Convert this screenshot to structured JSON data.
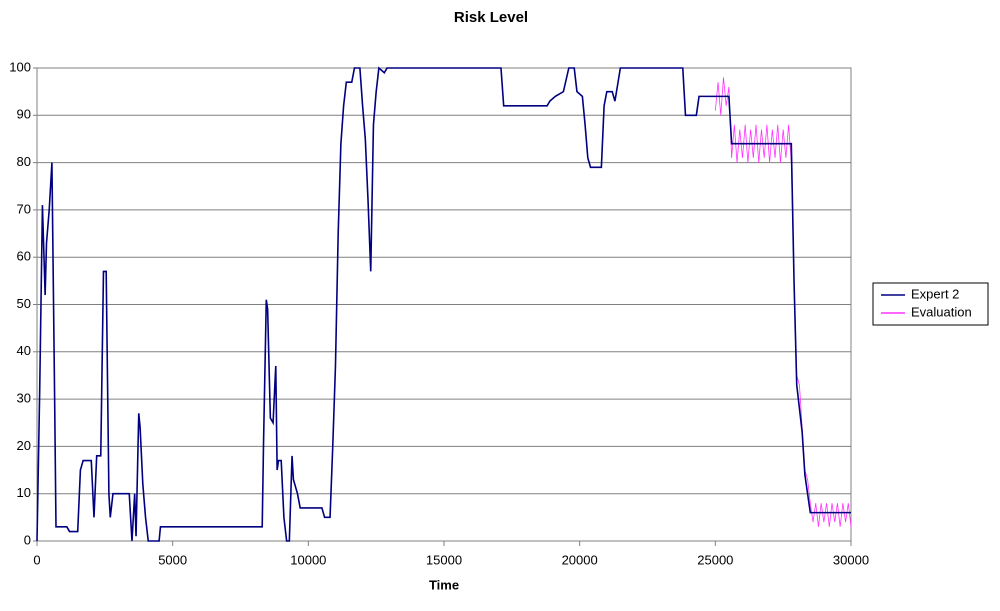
{
  "chart_data": {
    "type": "line",
    "title": "Risk Level",
    "x_label": "Time",
    "xlim": [
      0,
      30000
    ],
    "xticks": [
      0,
      5000,
      10000,
      15000,
      20000,
      25000,
      30000
    ],
    "ylim": [
      0,
      100
    ],
    "yticks": [
      0,
      10,
      20,
      30,
      40,
      50,
      60,
      70,
      80,
      90,
      100
    ],
    "grid": true,
    "legend": "right",
    "series": [
      {
        "name": "Expert 2",
        "color": "#000080",
        "x": [
          0,
          100,
          200,
          300,
          350,
          450,
          550,
          650,
          700,
          1100,
          1200,
          1500,
          1600,
          1700,
          2000,
          2100,
          2200,
          2350,
          2450,
          2550,
          2650,
          2700,
          2800,
          3400,
          3500,
          3600,
          3650,
          3750,
          3800,
          3900,
          4000,
          4100,
          4500,
          4550,
          8300,
          8350,
          8450,
          8500,
          8600,
          8700,
          8800,
          8850,
          8900,
          9000,
          9100,
          9200,
          9300,
          9400,
          9450,
          9600,
          9700,
          10500,
          10600,
          10800,
          10900,
          11000,
          11100,
          11200,
          11300,
          11400,
          11600,
          11700,
          11900,
          12000,
          12100,
          12200,
          12300,
          12400,
          12500,
          12600,
          12800,
          12900,
          17100,
          17200,
          18800,
          18900,
          19100,
          19400,
          19600,
          19800,
          19900,
          20100,
          20200,
          20300,
          20400,
          20800,
          20900,
          21000,
          21200,
          21300,
          21500,
          23800,
          23900,
          24300,
          24400,
          25500,
          25600,
          27800,
          27900,
          28000,
          28200,
          28300,
          28500,
          30000
        ],
        "values": [
          0,
          32,
          71,
          52,
          63,
          70,
          80,
          30,
          3,
          3,
          2,
          2,
          15,
          17,
          17,
          5,
          18,
          18,
          57,
          57,
          10,
          5,
          10,
          10,
          0,
          10,
          1,
          27,
          24,
          12,
          5,
          0,
          0,
          3,
          3,
          21,
          51,
          49,
          26,
          25,
          37,
          15,
          17,
          17,
          5,
          0,
          0,
          18,
          13,
          10,
          7,
          7,
          5,
          5,
          20,
          37,
          65,
          84,
          92,
          97,
          97,
          100,
          100,
          92,
          85,
          72,
          57,
          88,
          95,
          100,
          99,
          100,
          100,
          92,
          92,
          93,
          94,
          95,
          100,
          100,
          95,
          94,
          88,
          81,
          79,
          79,
          92,
          95,
          95,
          93,
          100,
          100,
          90,
          90,
          94,
          94,
          84,
          84,
          55,
          33,
          23,
          14,
          6,
          6
        ]
      },
      {
        "name": "Evaluation",
        "color": "#ff33ff",
        "x": [
          25000,
          25100,
          25200,
          25300,
          25400,
          25500,
          25600,
          25700,
          25800,
          25900,
          26000,
          26100,
          26200,
          26300,
          26400,
          26500,
          26600,
          26700,
          26800,
          26900,
          27000,
          27100,
          27200,
          27300,
          27400,
          27500,
          27600,
          27700,
          27800,
          27900,
          28000,
          28100,
          28200,
          28300,
          28400,
          28500,
          28600,
          28700,
          28800,
          28900,
          29000,
          29100,
          29200,
          29300,
          29400,
          29500,
          29600,
          29700,
          29800,
          29900,
          30000
        ],
        "values": [
          91,
          97,
          90,
          98,
          92,
          96,
          81,
          88,
          80,
          87,
          81,
          88,
          80,
          87,
          81,
          88,
          80,
          87,
          81,
          88,
          80,
          87,
          81,
          88,
          80,
          87,
          81,
          88,
          80,
          55,
          35,
          33,
          24,
          15,
          13,
          8,
          4,
          8,
          3,
          8,
          4,
          8,
          3,
          8,
          4,
          8,
          3,
          8,
          4,
          8,
          3
        ]
      }
    ]
  }
}
